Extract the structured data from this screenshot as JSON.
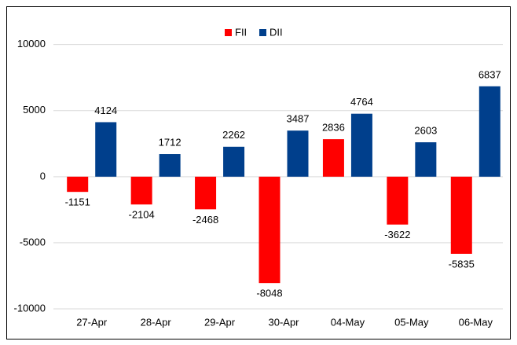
{
  "chart_data": {
    "type": "bar",
    "categories": [
      "27-Apr",
      "28-Apr",
      "29-Apr",
      "30-Apr",
      "04-May",
      "05-May",
      "06-May"
    ],
    "series": [
      {
        "name": "FII",
        "color": "#ff0000",
        "values": [
          -1151,
          -2104,
          -2468,
          -8048,
          2836,
          -3622,
          -5835
        ]
      },
      {
        "name": "DII",
        "color": "#003f8c",
        "values": [
          4124,
          1712,
          2262,
          3487,
          4764,
          2603,
          6837
        ]
      }
    ],
    "ylim": [
      -10000,
      12000
    ],
    "yticks": [
      -10000,
      -5000,
      0,
      5000,
      10000
    ],
    "grid": true,
    "legend": "top"
  }
}
